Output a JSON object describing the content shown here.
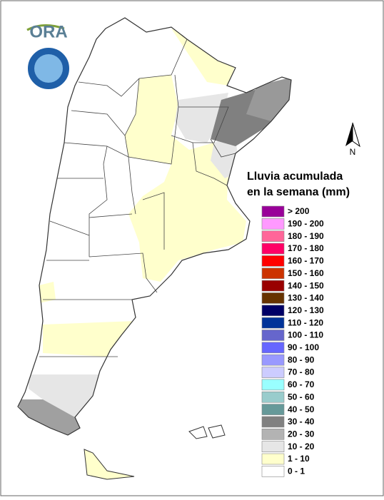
{
  "logo": {
    "text": "ORA"
  },
  "north": "N",
  "legend": {
    "title_lines": [
      "Lluvia acumulada",
      "en la semana (mm)"
    ],
    "items": [
      {
        "label": "> 200",
        "color": "#990099"
      },
      {
        "label": "190 - 200",
        "color": "#ff99ff"
      },
      {
        "label": "180 - 190",
        "color": "#ff6699"
      },
      {
        "label": "170 - 180",
        "color": "#ff0066"
      },
      {
        "label": "160 - 170",
        "color": "#ff0000"
      },
      {
        "label": "150 - 160",
        "color": "#cc3300"
      },
      {
        "label": "140 - 150",
        "color": "#990000"
      },
      {
        "label": "130 - 140",
        "color": "#663300"
      },
      {
        "label": "120 - 130",
        "color": "#000066"
      },
      {
        "label": "110 - 120",
        "color": "#003399"
      },
      {
        "label": "100 - 110",
        "color": "#6666cc"
      },
      {
        "label": "90 - 100",
        "color": "#6666ff"
      },
      {
        "label": "80 - 90",
        "color": "#9999ff"
      },
      {
        "label": "70 - 80",
        "color": "#ccccff"
      },
      {
        "label": "60 - 70",
        "color": "#99ffff"
      },
      {
        "label": "50 - 60",
        "color": "#99cccc"
      },
      {
        "label": "40 - 50",
        "color": "#669999"
      },
      {
        "label": "30 - 40",
        "color": "#808080"
      },
      {
        "label": "20 - 30",
        "color": "#b3b3b3"
      },
      {
        "label": "10 - 20",
        "color": "#e6e6e6"
      },
      {
        "label": "1 - 10",
        "color": "#ffffcc"
      },
      {
        "label": "0 - 1",
        "color": "#ffffff"
      }
    ]
  }
}
